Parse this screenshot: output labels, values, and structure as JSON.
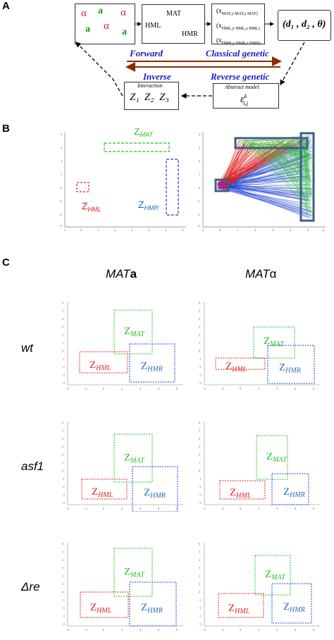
{
  "panel_a": {
    "letter": "A",
    "dish_labels": [
      "α",
      "a",
      "α",
      "a",
      "α",
      "a"
    ],
    "locus_box": {
      "mat": "MAT",
      "hml": "HML",
      "hmr": "HMR"
    },
    "coord_rows": [
      "(x",
      "(x",
      "(x"
    ],
    "coord_rows_sub": [
      "MAT,y MAT,z MAT)",
      "HML,y HML,z HML)",
      "HMR,y HMR,z HMR)"
    ],
    "result": "(d₁ , d₂ , θ)",
    "forward": "Forward",
    "classical": "Classical genetic",
    "inverse": "Inverse",
    "reverse": "Reverse genetic",
    "interaction_title": "Interaction",
    "interaction_vars": "Z₁  Z₂  Z₃",
    "abstract_title": "Abstract model",
    "abstract_var": "ε",
    "abstract_sup": "k",
    "abstract_sub": "i,j"
  },
  "panel_b": {
    "letter": "B",
    "z_mat": "Z",
    "z_mat_sub": "MAT",
    "z_hml": "Z",
    "z_hml_sub": "HML",
    "z_hmr": "Z",
    "z_hmr_sub": "HMR",
    "x_ticks": [
      "-1",
      "0",
      "1",
      "2",
      "3",
      "4",
      "5",
      "6"
    ],
    "y_ticks": [
      "4",
      "3",
      "2",
      "1",
      "0",
      "-1",
      "-2",
      "-3"
    ]
  },
  "panel_c": {
    "letter": "C",
    "col_mata_prefix": "MAT",
    "col_mata_suffix": "a",
    "col_matalpha_prefix": "MAT",
    "col_matalpha_suffix": "α",
    "row_wt": "wt",
    "row_asf1": "asf1",
    "row_dre": "Δre",
    "z": "Z",
    "mat": "MAT",
    "hml": "HML",
    "hmr": "HMR",
    "x_ticks": [
      "-4",
      "-2",
      "0",
      "2",
      "4",
      "6",
      "8"
    ],
    "y_ticks": [
      "6",
      "5",
      "4",
      "3",
      "2",
      "1",
      "0",
      "-1",
      "-2",
      "-3",
      "-4"
    ]
  },
  "colors": {
    "red": "#e02020",
    "green": "#22c022",
    "blue": "#1a3fd0",
    "hmr_text": "#1f6fb5",
    "brown": "#8b2a00",
    "arrow_blue": "#1a1acc",
    "frame": "#3c5f85"
  }
}
